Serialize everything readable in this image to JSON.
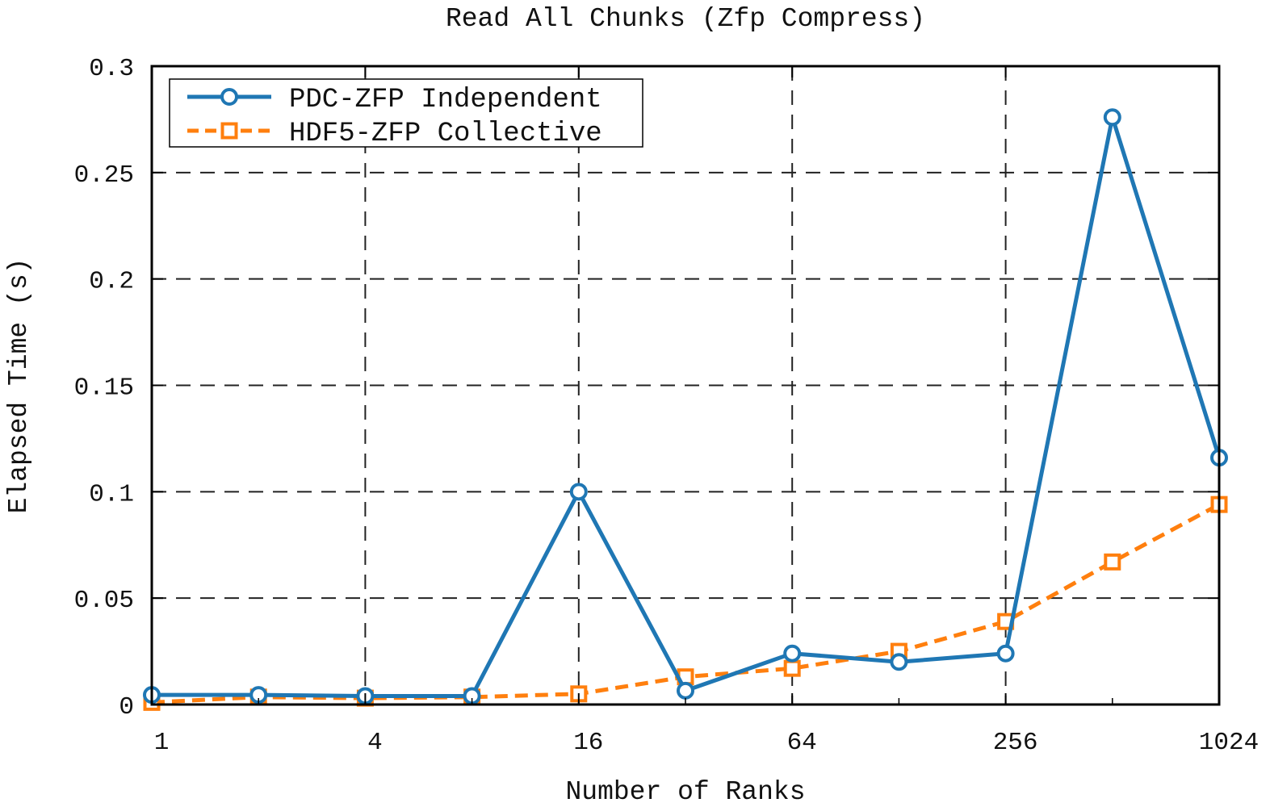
{
  "chart_data": {
    "type": "line",
    "title": "Read All Chunks (Zfp Compress)",
    "xlabel": "Number of Ranks",
    "ylabel": "Elapsed Time (s)",
    "x_scale": "log2",
    "xlim": [
      1,
      1024
    ],
    "ylim": [
      0,
      0.3
    ],
    "x_ticks": [
      1,
      4,
      16,
      64,
      256,
      1024
    ],
    "x_tick_labels": [
      "1",
      "4",
      "16",
      "64",
      "256",
      "1024"
    ],
    "y_ticks": [
      0,
      0.05,
      0.1,
      0.15,
      0.2,
      0.25,
      0.3
    ],
    "y_tick_labels": [
      "0",
      "0.05",
      "0.1",
      "0.15",
      "0.2",
      "0.25",
      "0.3"
    ],
    "grid": true,
    "legend_position": "top-left",
    "x": [
      1,
      2,
      4,
      8,
      16,
      32,
      64,
      128,
      256,
      512,
      1024
    ],
    "series": [
      {
        "name": "PDC-ZFP Independent",
        "color": "#1f77b4",
        "marker": "circle",
        "line_style": "solid",
        "values": [
          0.0045,
          0.0045,
          0.004,
          0.004,
          0.1,
          0.0065,
          0.024,
          0.02,
          0.024,
          0.276,
          0.116
        ]
      },
      {
        "name": "HDF5-ZFP Collective",
        "color": "#ff7f0e",
        "marker": "square",
        "line_style": "dashed",
        "values": [
          0.001,
          0.0035,
          0.003,
          0.0035,
          0.005,
          0.013,
          0.017,
          0.025,
          0.039,
          0.067,
          0.094
        ]
      }
    ]
  }
}
